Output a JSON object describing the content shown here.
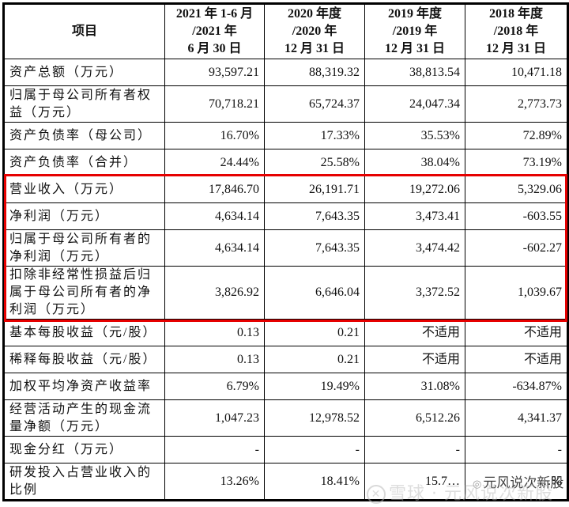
{
  "table": {
    "headers": [
      {
        "lines": [
          "项目"
        ]
      },
      {
        "lines": [
          "2021 年 1-6 月",
          "/2021 年",
          "6 月 30 日"
        ]
      },
      {
        "lines": [
          "2020 年度",
          "/2020 年",
          "12 月 31 日"
        ]
      },
      {
        "lines": [
          "2019 年度",
          "/2019 年",
          "12 月 31 日"
        ]
      },
      {
        "lines": [
          "2018 年度",
          "/2018 年",
          "12 月 31 日"
        ]
      }
    ],
    "rows": [
      {
        "label": "资产总额（万元）",
        "values": [
          "93,597.21",
          "88,319.32",
          "38,813.54",
          "10,471.18"
        ],
        "highlighted": false
      },
      {
        "label": "归属于母公司所有者权益（万元）",
        "values": [
          "70,718.21",
          "65,724.37",
          "24,047.34",
          "2,773.73"
        ],
        "highlighted": false
      },
      {
        "label": "资产负债率（母公司）",
        "values": [
          "16.70%",
          "17.33%",
          "35.53%",
          "72.89%"
        ],
        "highlighted": false
      },
      {
        "label": "资产负债率（合并）",
        "values": [
          "24.44%",
          "25.58%",
          "38.04%",
          "73.19%"
        ],
        "highlighted": false
      },
      {
        "label": "营业收入（万元）",
        "values": [
          "17,846.70",
          "26,191.71",
          "19,272.06",
          "5,329.06"
        ],
        "highlighted": true
      },
      {
        "label": "净利润（万元）",
        "values": [
          "4,634.14",
          "7,643.35",
          "3,473.41",
          "-603.55"
        ],
        "highlighted": true
      },
      {
        "label": "归属于母公司所有者的净利润（万元）",
        "values": [
          "4,634.14",
          "7,643.35",
          "3,474.42",
          "-602.27"
        ],
        "highlighted": true
      },
      {
        "label": "扣除非经常性损益后归属于母公司所有者的净利润（万元）",
        "values": [
          "3,826.92",
          "6,646.04",
          "3,372.52",
          "1,039.67"
        ],
        "highlighted": true
      },
      {
        "label": "基本每股收益（元/股）",
        "values": [
          "0.13",
          "0.21",
          "不适用",
          "不适用"
        ],
        "highlighted": false
      },
      {
        "label": "稀释每股收益（元/股）",
        "values": [
          "0.13",
          "0.21",
          "不适用",
          "不适用"
        ],
        "highlighted": false
      },
      {
        "label": "加权平均净资产收益率",
        "values": [
          "6.79%",
          "19.49%",
          "31.08%",
          "-634.87%"
        ],
        "highlighted": false
      },
      {
        "label": "经营活动产生的现金流量净额（万元）",
        "values": [
          "1,047.23",
          "12,978.52",
          "6,512.26",
          "4,341.37"
        ],
        "highlighted": false
      },
      {
        "label": "现金分红（万元）",
        "values": [
          "-",
          "-",
          "-",
          "-"
        ],
        "highlighted": false
      },
      {
        "label": "研发投入占营业收入的比例",
        "values": [
          "13.26%",
          "18.41%",
          "15.7…",
          "…%"
        ],
        "highlighted": false
      }
    ]
  },
  "highlight": {
    "color": "#e60000",
    "rows_from": 4,
    "rows_to": 7
  },
  "watermark": {
    "line1": "元风说次新股",
    "line1_icon": "wechat-icon",
    "line2": "雪球 · 元风说次新股",
    "line2_icon": "xueqiu-logo-icon"
  }
}
